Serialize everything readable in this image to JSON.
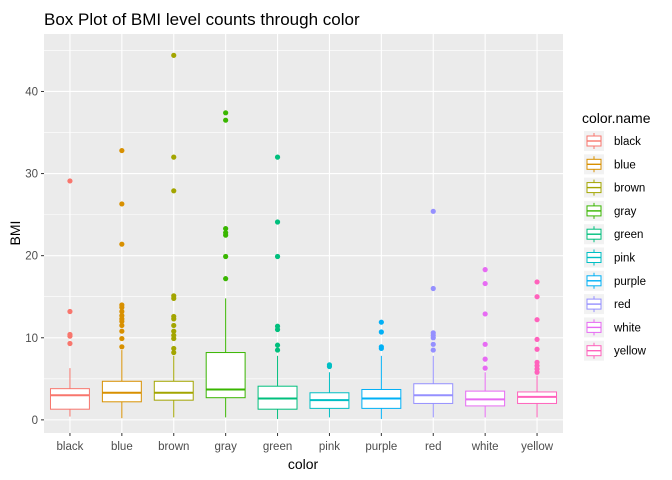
{
  "chart_data": {
    "type": "box",
    "title": "Box Plot of BMI level counts through color",
    "xlabel": "color",
    "ylabel": "BMI",
    "ylim": [
      -1.6,
      47
    ],
    "y_ticks": [
      0,
      10,
      20,
      30,
      40
    ],
    "grid": true,
    "legend": {
      "title": "color.name",
      "position": "right"
    },
    "categories": [
      "black",
      "blue",
      "brown",
      "gray",
      "green",
      "pink",
      "purple",
      "red",
      "white",
      "yellow"
    ],
    "series": [
      {
        "name": "black",
        "color": "#F8766D",
        "lower_whisker": 0.4,
        "q1": 1.3,
        "median": 3.0,
        "q3": 3.8,
        "upper_whisker": 6.3,
        "outliers": [
          9.3,
          10.2,
          10.4,
          13.2,
          29.1
        ]
      },
      {
        "name": "blue",
        "color": "#D89000",
        "lower_whisker": 0.2,
        "q1": 2.2,
        "median": 3.3,
        "q3": 4.7,
        "upper_whisker": 8.5,
        "outliers": [
          8.9,
          9.9,
          10.8,
          11.5,
          12.0,
          12.3,
          12.7,
          13.2,
          13.7,
          14.0,
          21.4,
          26.3,
          32.8
        ]
      },
      {
        "name": "brown",
        "color": "#A3A500",
        "lower_whisker": 0.3,
        "q1": 2.4,
        "median": 3.3,
        "q3": 4.7,
        "upper_whisker": 7.8,
        "outliers": [
          8.2,
          8.7,
          9.9,
          10.3,
          10.8,
          11.5,
          12.3,
          12.6,
          14.8,
          15.1,
          27.9,
          32.0,
          44.4
        ]
      },
      {
        "name": "gray",
        "color": "#39B600",
        "lower_whisker": 0.3,
        "q1": 2.7,
        "median": 3.7,
        "q3": 8.2,
        "upper_whisker": 14.8,
        "outliers": [
          17.2,
          19.9,
          22.5,
          22.8,
          23.3,
          36.5,
          37.4
        ]
      },
      {
        "name": "green",
        "color": "#00BF7D",
        "lower_whisker": 0.1,
        "q1": 1.3,
        "median": 2.6,
        "q3": 4.1,
        "upper_whisker": 7.8,
        "outliers": [
          8.5,
          9.1,
          11.0,
          11.4,
          19.9,
          24.1,
          32.0
        ]
      },
      {
        "name": "pink",
        "color": "#00BFC4",
        "lower_whisker": 0.3,
        "q1": 1.4,
        "median": 2.4,
        "q3": 3.3,
        "upper_whisker": 5.8,
        "outliers": [
          6.5,
          6.7
        ]
      },
      {
        "name": "purple",
        "color": "#00B0F6",
        "lower_whisker": 0.1,
        "q1": 1.4,
        "median": 2.6,
        "q3": 3.7,
        "upper_whisker": 7.8,
        "outliers": [
          8.7,
          8.9,
          10.7,
          11.9
        ]
      },
      {
        "name": "red",
        "color": "#9590FF",
        "lower_whisker": 0.3,
        "q1": 2.0,
        "median": 3.0,
        "q3": 4.4,
        "upper_whisker": 7.8,
        "outliers": [
          8.5,
          9.2,
          10.0,
          10.3,
          10.6,
          16.0,
          25.4
        ]
      },
      {
        "name": "white",
        "color": "#E76BF3",
        "lower_whisker": 0.3,
        "q1": 1.7,
        "median": 2.5,
        "q3": 3.5,
        "upper_whisker": 5.8,
        "outliers": [
          6.3,
          7.4,
          9.2,
          12.9,
          16.6,
          18.3
        ]
      },
      {
        "name": "yellow",
        "color": "#FF62BC",
        "lower_whisker": 0.3,
        "q1": 2.0,
        "median": 2.8,
        "q3": 3.4,
        "upper_whisker": 5.4,
        "outliers": [
          5.8,
          6.2,
          6.6,
          7.0,
          8.6,
          9.8,
          12.2,
          15.0,
          16.8
        ]
      }
    ]
  }
}
